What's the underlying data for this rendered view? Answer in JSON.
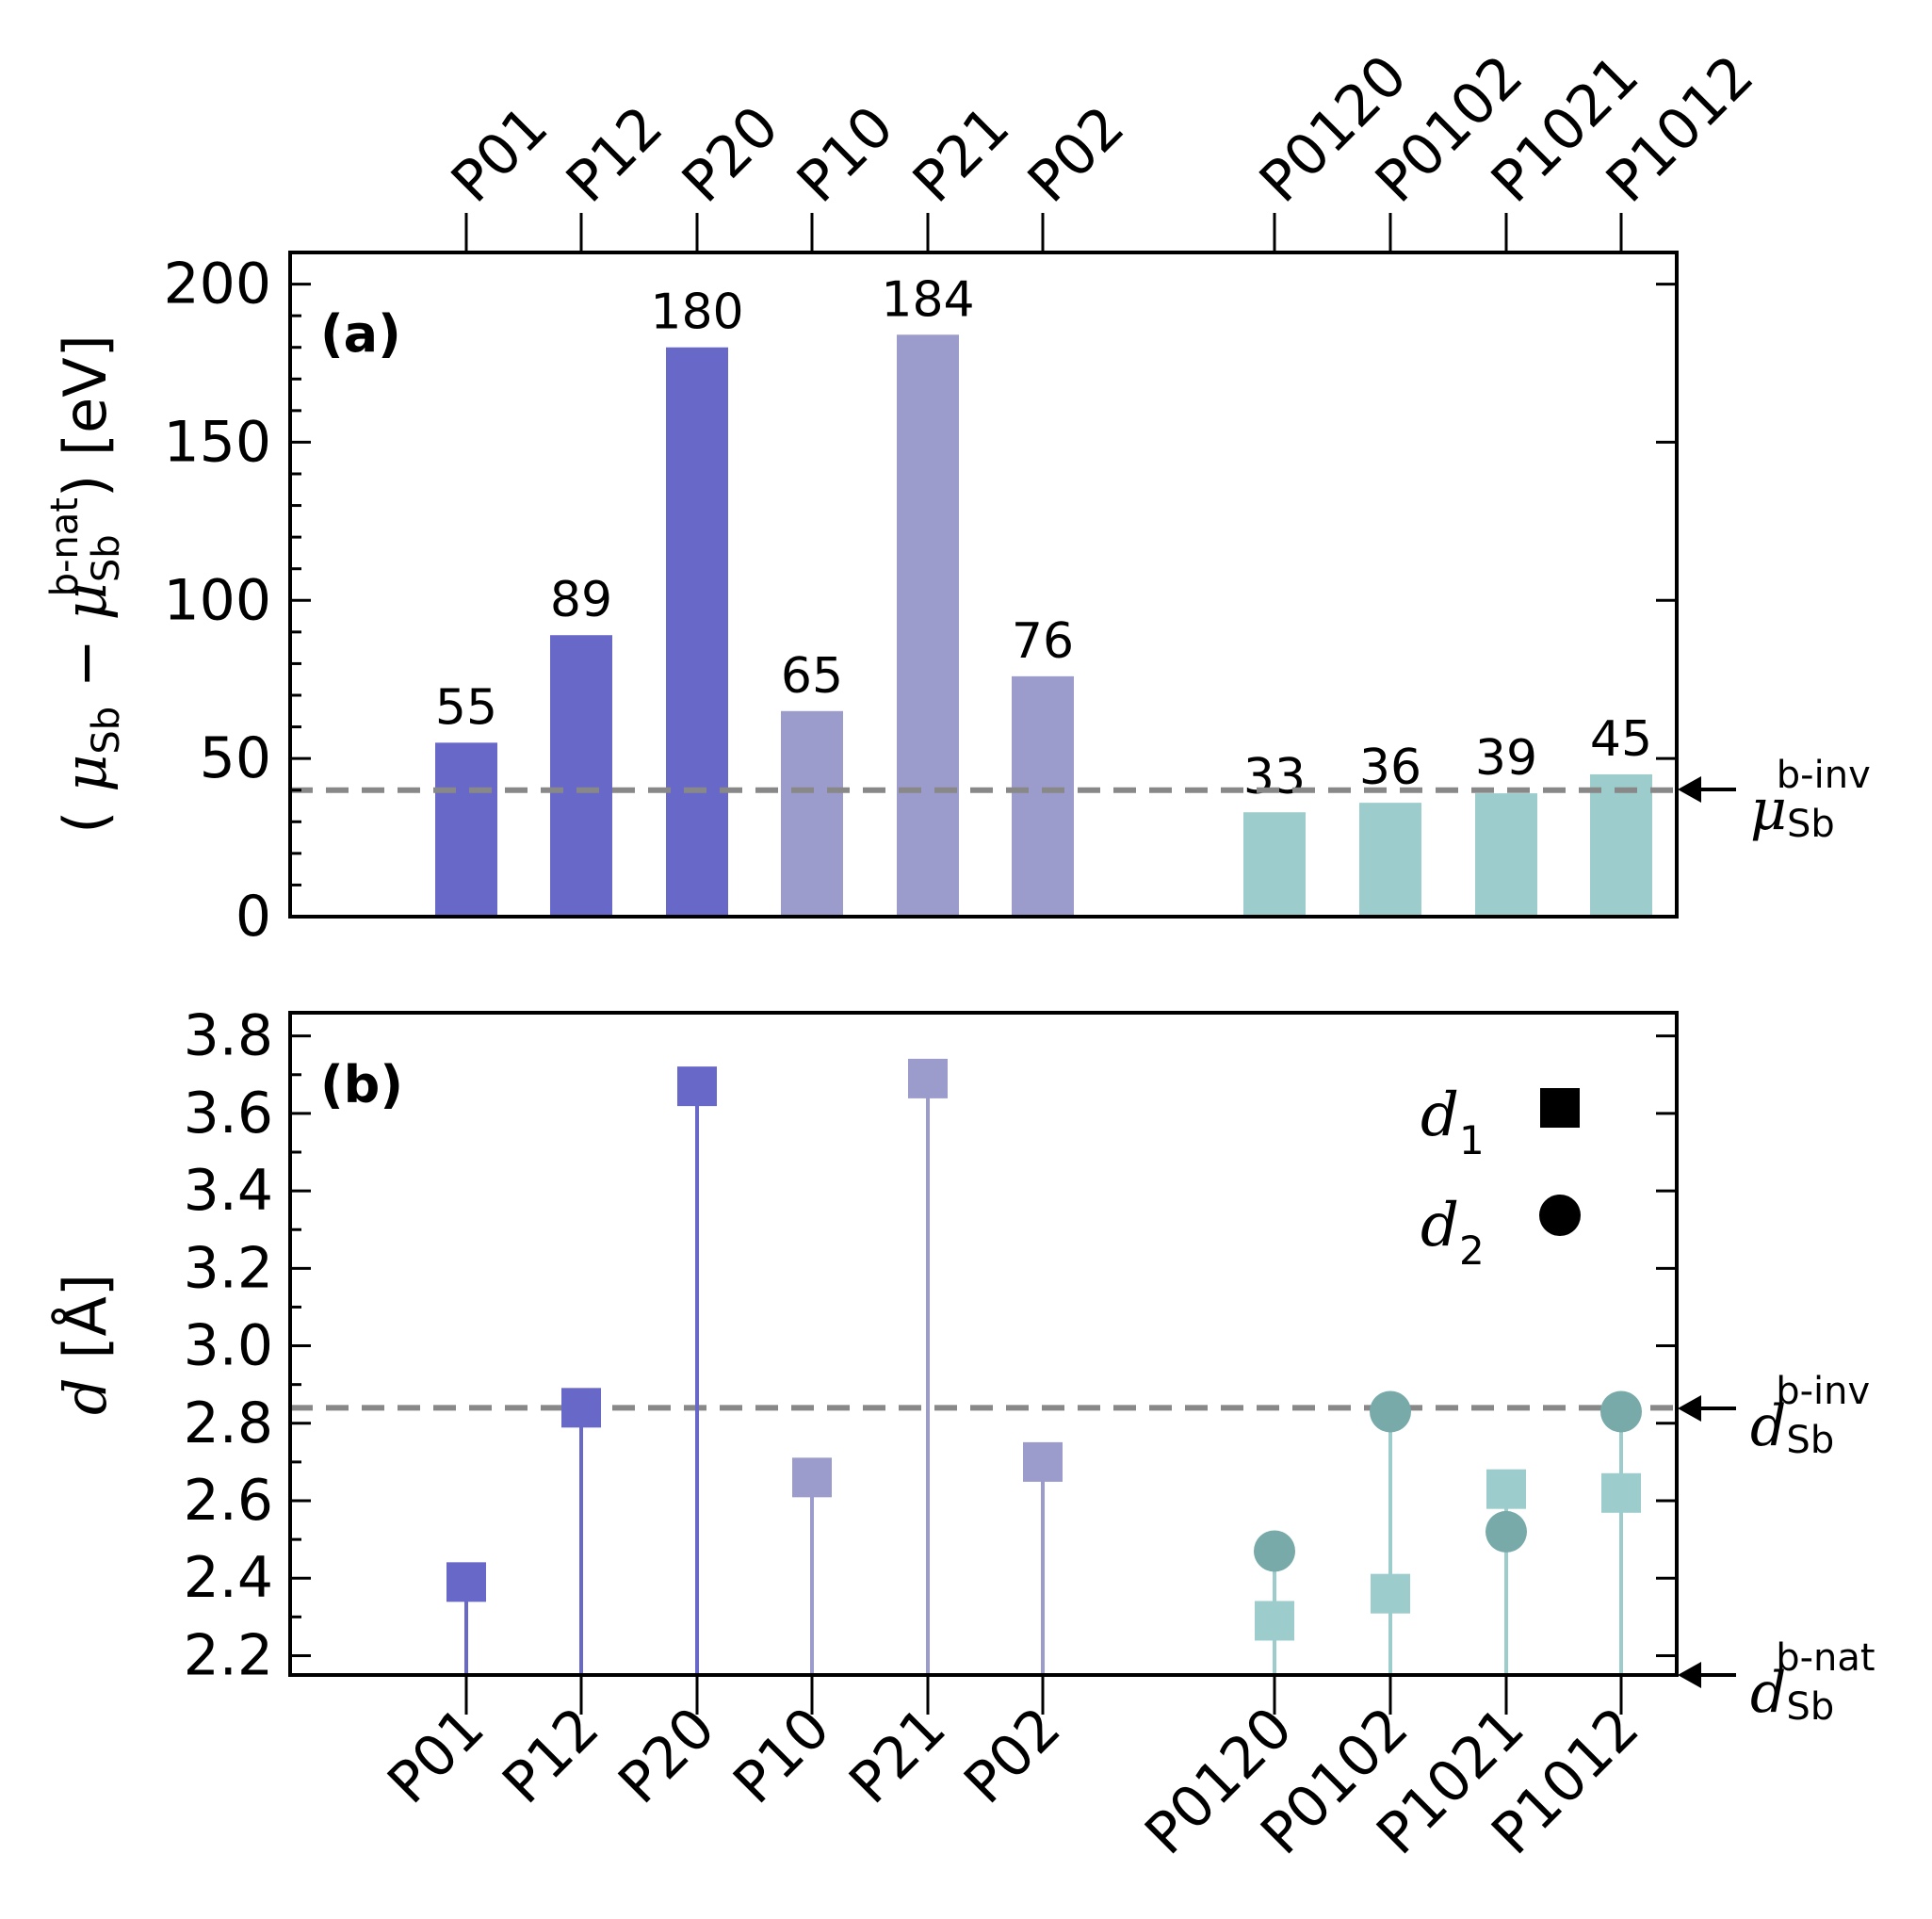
{
  "chart_data": [
    {
      "type": "bar",
      "panel_label": "(a)",
      "ylabel": {
        "open": "( ",
        "mu": "μ",
        "sub": "Sb",
        "minus": " − ",
        "mu2": "μ",
        "sub2": "Sb",
        "sup2": "b-nat",
        "close": ") [eV]"
      },
      "ylim": [
        0,
        210
      ],
      "yticks": [
        0,
        50,
        100,
        150,
        200
      ],
      "top_tick_labels": [
        "P01",
        "P12",
        "P20",
        "P10",
        "P21",
        "P02",
        "P0120",
        "P0102",
        "P1021",
        "P1012"
      ],
      "categories": [
        "P01",
        "P12",
        "P20",
        "P10",
        "P21",
        "P02",
        "P0120",
        "P0102",
        "P1021",
        "P1012"
      ],
      "values": [
        55,
        89,
        180,
        65,
        184,
        76,
        33,
        36,
        39,
        45
      ],
      "value_labels": [
        "55",
        "89",
        "180",
        "65",
        "184",
        "76",
        "33",
        "36",
        "39",
        "45"
      ],
      "groups": [
        "g1",
        "g1",
        "g1",
        "g2",
        "g2",
        "g2",
        "g3",
        "g3",
        "g3",
        "g3"
      ],
      "reference_line": {
        "value": 40,
        "label_mu": "μ",
        "label_sub": "Sb",
        "label_sup": "b-inv"
      }
    },
    {
      "type": "scatter",
      "panel_label": "(b)",
      "ylabel": {
        "d": "d",
        "unit": " [Å]"
      },
      "ylim": [
        2.15,
        3.86
      ],
      "yticks": [
        "2.2",
        "2.4",
        "2.6",
        "2.8",
        "3.0",
        "3.2",
        "3.4",
        "3.6",
        "3.8"
      ],
      "categories": [
        "P01",
        "P12",
        "P20",
        "P10",
        "P21",
        "P02",
        "P0120",
        "P0102",
        "P1021",
        "P1012"
      ],
      "series": [
        {
          "name": "d",
          "name_sub": "1",
          "marker": "square",
          "values": [
            2.39,
            2.84,
            3.67,
            2.66,
            3.69,
            2.7,
            2.29,
            2.36,
            2.63,
            2.62
          ]
        },
        {
          "name": "d",
          "name_sub": "2",
          "marker": "circle",
          "values": [
            null,
            null,
            null,
            null,
            null,
            null,
            2.47,
            2.83,
            2.52,
            2.83
          ]
        }
      ],
      "reference_lines": [
        {
          "value": 2.84,
          "dashed": true,
          "label_d": "d",
          "label_sub": "Sb",
          "label_sup": "b-inv"
        },
        {
          "value": 2.15,
          "dashed": false,
          "label_d": "d",
          "label_sub": "Sb",
          "label_sup": "b-nat"
        }
      ]
    }
  ],
  "colors": {
    "g1": "#6868c8",
    "g2": "#9c9ccc",
    "g3_bar": "#9ccccc",
    "g3_circle": "#78aaaa",
    "reference": "#888888",
    "axis": "#000000"
  }
}
